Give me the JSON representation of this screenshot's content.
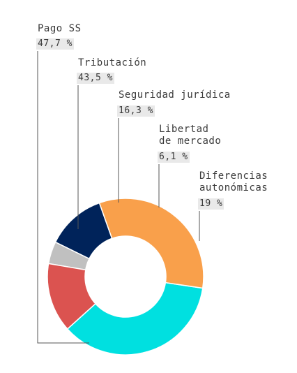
{
  "chart_data": {
    "type": "pie",
    "variant": "donut",
    "categories": [
      "Pago SS",
      "Tributación",
      "Seguridad jurídica",
      "Libertad de mercado",
      "Diferencias autonómicas"
    ],
    "labels": [
      {
        "name": "Pago SS",
        "lines": [
          "Pago SS"
        ],
        "value_text": "47,7 %"
      },
      {
        "name": "Tributación",
        "lines": [
          "Tributación"
        ],
        "value_text": "43,5 %"
      },
      {
        "name": "Seguridad jurídica",
        "lines": [
          "Seguridad jurídica"
        ],
        "value_text": "16,3 %"
      },
      {
        "name": "Libertad de mercado",
        "lines": [
          "Libertad",
          "de mercado"
        ],
        "value_text": "6,1 %"
      },
      {
        "name": "Diferencias autonómicas",
        "lines": [
          "Diferencias",
          "autonómicas"
        ],
        "value_text": "19 %"
      }
    ],
    "values": [
      47.7,
      43.5,
      16.3,
      6.1,
      19
    ],
    "colors": [
      "#00E0E0",
      "#F9A04B",
      "#00235A",
      "#C0C0C0",
      "#DB5350"
    ],
    "legend": "none"
  }
}
